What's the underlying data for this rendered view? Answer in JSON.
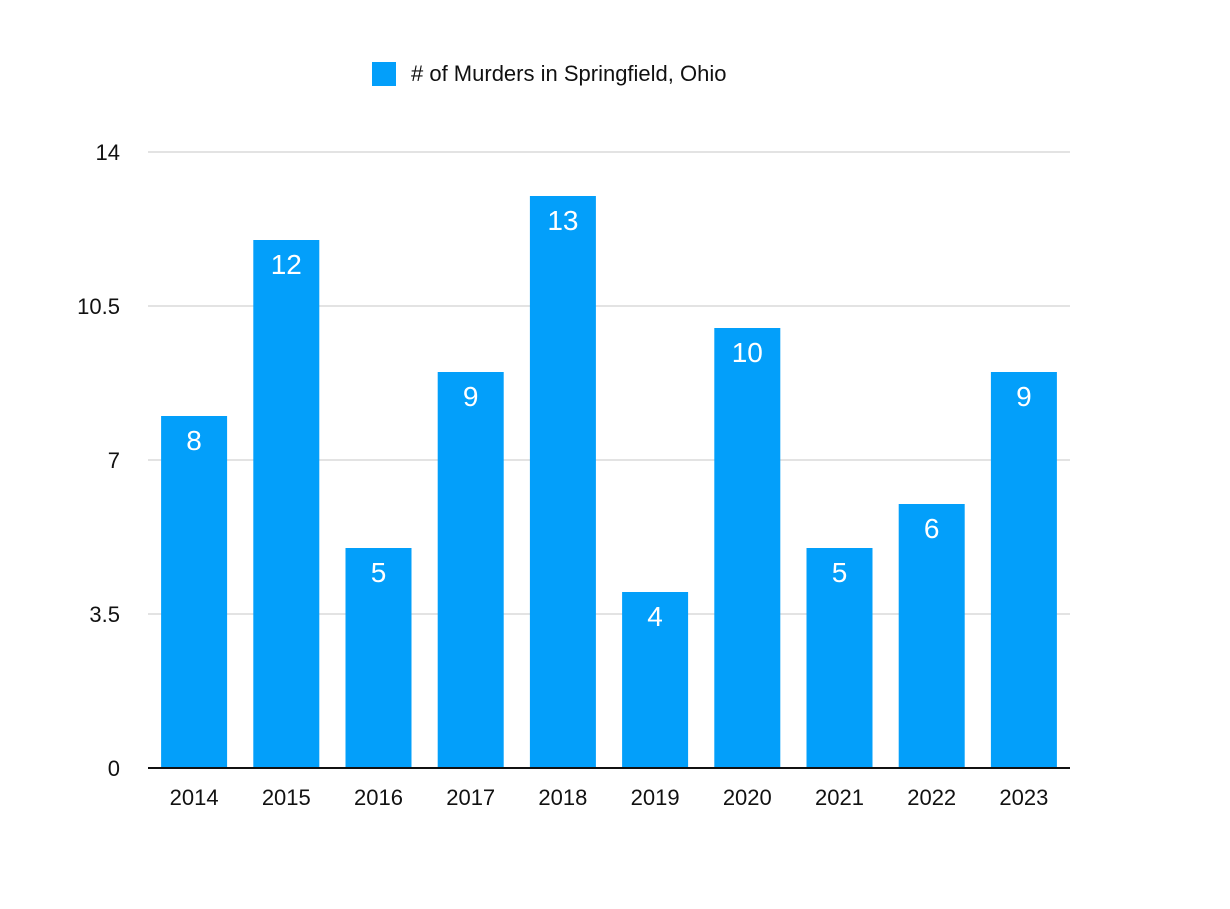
{
  "chart_data": {
    "type": "bar",
    "title": "",
    "xlabel": "",
    "ylabel": "",
    "categories": [
      "2014",
      "2015",
      "2016",
      "2017",
      "2018",
      "2019",
      "2020",
      "2021",
      "2022",
      "2023"
    ],
    "series": [
      {
        "name": "# of Murders in Springfield, Ohio",
        "values": [
          8,
          12,
          5,
          9,
          13,
          4,
          10,
          5,
          6,
          9
        ],
        "color": "#039ffa"
      }
    ],
    "ylim": [
      0,
      14
    ],
    "yticks": [
      "0",
      "3.5",
      "7",
      "10.5",
      "14"
    ],
    "data_labels": [
      "8",
      "12",
      "5",
      "9",
      "13",
      "4",
      "10",
      "5",
      "6",
      "9"
    ],
    "grid": true,
    "legend_position": "top"
  }
}
